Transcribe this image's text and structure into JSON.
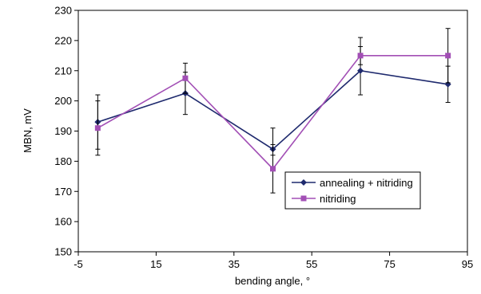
{
  "chart_data": {
    "type": "line",
    "title": "",
    "xlabel": "bending angle, °",
    "ylabel": "MBN, mV",
    "xlim": [
      -5,
      95
    ],
    "ylim": [
      150,
      230
    ],
    "x_ticks": [
      "-5",
      "15",
      "35",
      "55",
      "75",
      "95"
    ],
    "y_ticks": [
      "150",
      "160",
      "170",
      "180",
      "190",
      "200",
      "210",
      "220",
      "230"
    ],
    "grid": false,
    "legend_position": "lower-right",
    "series": [
      {
        "name": "annealing + nitriding",
        "color": "#1f2a6e",
        "marker": "diamond",
        "x": [
          0,
          22.5,
          45,
          67.5,
          90
        ],
        "y": [
          193,
          202.5,
          184,
          210,
          205.5
        ],
        "err_low": [
          9,
          7,
          2,
          8,
          6
        ],
        "err_high": [
          9,
          7,
          7,
          8,
          6
        ]
      },
      {
        "name": "nitriding",
        "color": "#a24fb5",
        "marker": "square",
        "x": [
          0,
          22.5,
          45,
          67.5,
          90
        ],
        "y": [
          191,
          207.5,
          177.5,
          215,
          215
        ],
        "err_low": [
          9,
          5,
          8,
          3,
          9
        ],
        "err_high": [
          9,
          5,
          8,
          6,
          9
        ]
      }
    ]
  }
}
